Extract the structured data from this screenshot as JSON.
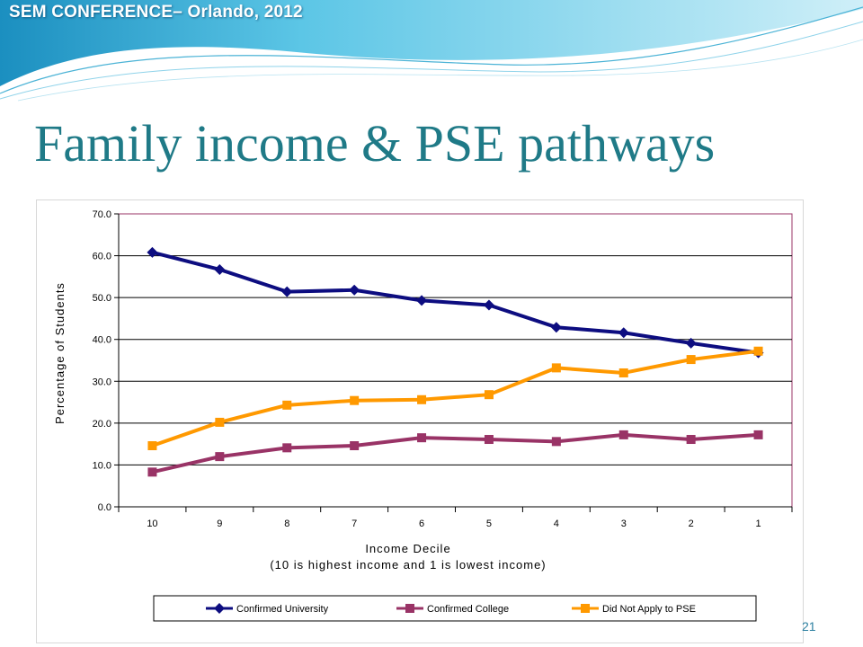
{
  "header": {
    "conference": "SEM CONFERENCE– Orlando, 2012"
  },
  "slide": {
    "title": "Family income & PSE pathways",
    "page_number": "21"
  },
  "colors": {
    "title": "#1f7a87",
    "header_light": "#bfeaf5",
    "header_mid": "#5cc6e6",
    "header_dark": "#1b8fc0"
  },
  "chart_data": {
    "type": "line",
    "title": "",
    "xlabel": "Income Decile",
    "xlabel_note": "(10 is highest income and 1 is lowest income)",
    "ylabel": "Percentage of Students",
    "categories": [
      "10",
      "9",
      "8",
      "7",
      "6",
      "5",
      "4",
      "3",
      "2",
      "1"
    ],
    "ylim": [
      0,
      70
    ],
    "y_ticks": [
      "0.0",
      "10.0",
      "20.0",
      "30.0",
      "40.0",
      "50.0",
      "60.0",
      "70.0"
    ],
    "grid": true,
    "legend_position": "bottom",
    "series": [
      {
        "name": "Confirmed University",
        "color": "#0d0d80",
        "marker": "diamond",
        "values": [
          60.8,
          56.7,
          51.4,
          51.8,
          49.3,
          48.2,
          42.9,
          41.6,
          39.1,
          36.8
        ]
      },
      {
        "name": "Confirmed College",
        "color": "#993366",
        "marker": "square",
        "values": [
          8.3,
          12.0,
          14.1,
          14.6,
          16.5,
          16.1,
          15.6,
          17.2,
          16.1,
          17.2
        ]
      },
      {
        "name": "Did Not Apply to PSE",
        "color": "#ff9900",
        "marker": "square",
        "values": [
          14.6,
          20.2,
          24.3,
          25.4,
          25.6,
          26.8,
          33.2,
          32.0,
          35.2,
          37.2
        ]
      }
    ]
  }
}
